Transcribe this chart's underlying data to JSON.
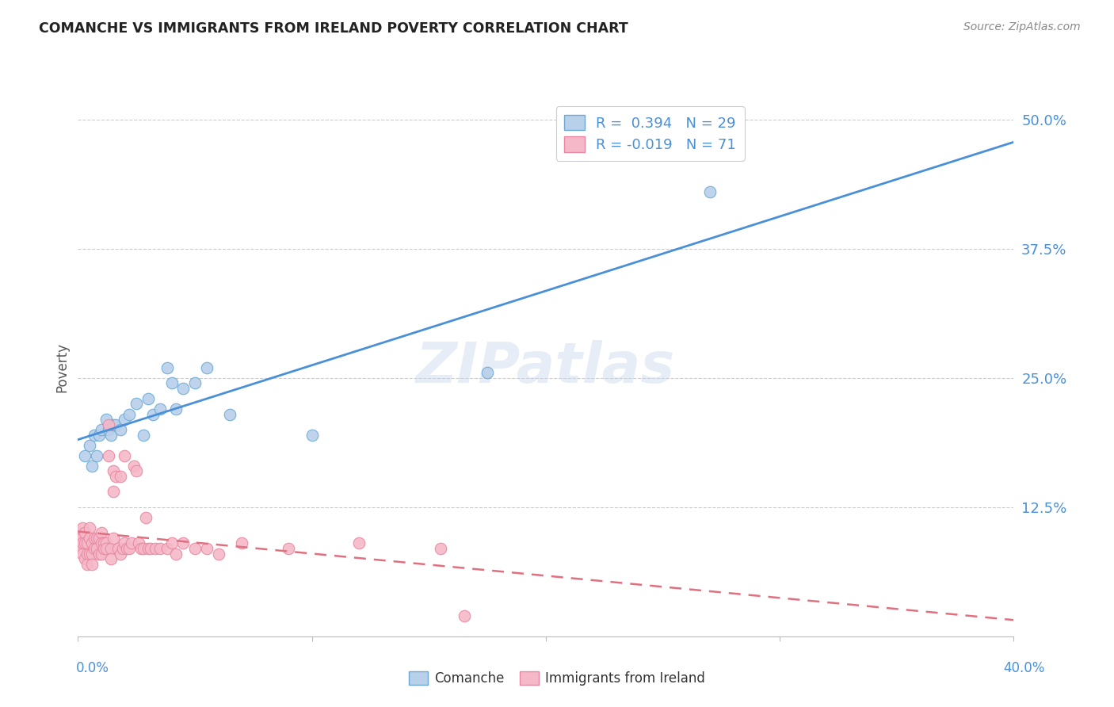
{
  "title": "COMANCHE VS IMMIGRANTS FROM IRELAND POVERTY CORRELATION CHART",
  "source": "Source: ZipAtlas.com",
  "ylabel": "Poverty",
  "ytick_values": [
    0.125,
    0.25,
    0.375,
    0.5
  ],
  "ytick_labels": [
    "12.5%",
    "25.0%",
    "37.5%",
    "50.0%"
  ],
  "xlim": [
    0.0,
    0.4
  ],
  "ylim": [
    0.0,
    0.52
  ],
  "legend_r1": "R =  0.394   N = 29",
  "legend_r2": "R = -0.019   N = 71",
  "comanche_fill": "#b8d0ea",
  "comanche_edge": "#6aaad4",
  "ireland_fill": "#f5b8c8",
  "ireland_edge": "#e888a0",
  "trendline_blue": "#4a90d9",
  "trendline_pink": "#e07080",
  "grid_color": "#cccccc",
  "title_color": "#222222",
  "source_color": "#888888",
  "tick_color": "#4a90d9",
  "watermark": "ZIPatlas",
  "comanche_x": [
    0.003,
    0.005,
    0.006,
    0.007,
    0.008,
    0.009,
    0.01,
    0.012,
    0.013,
    0.014,
    0.015,
    0.016,
    0.018,
    0.02,
    0.022,
    0.025,
    0.028,
    0.03,
    0.032,
    0.035,
    0.038,
    0.04,
    0.042,
    0.045,
    0.05,
    0.055,
    0.065,
    0.1,
    0.175
  ],
  "comanche_y": [
    0.175,
    0.185,
    0.165,
    0.195,
    0.175,
    0.195,
    0.2,
    0.21,
    0.2,
    0.195,
    0.205,
    0.205,
    0.2,
    0.21,
    0.215,
    0.225,
    0.195,
    0.23,
    0.215,
    0.22,
    0.26,
    0.245,
    0.22,
    0.24,
    0.245,
    0.26,
    0.215,
    0.195,
    0.255
  ],
  "ireland_x": [
    0.0005,
    0.001,
    0.001,
    0.0015,
    0.0015,
    0.002,
    0.002,
    0.002,
    0.003,
    0.003,
    0.003,
    0.004,
    0.004,
    0.004,
    0.005,
    0.005,
    0.005,
    0.006,
    0.006,
    0.006,
    0.007,
    0.007,
    0.008,
    0.008,
    0.009,
    0.009,
    0.01,
    0.01,
    0.01,
    0.011,
    0.011,
    0.012,
    0.012,
    0.013,
    0.013,
    0.014,
    0.014,
    0.015,
    0.015,
    0.015,
    0.016,
    0.017,
    0.018,
    0.018,
    0.019,
    0.02,
    0.02,
    0.021,
    0.022,
    0.023,
    0.024,
    0.025,
    0.026,
    0.027,
    0.028,
    0.029,
    0.03,
    0.031,
    0.033,
    0.035,
    0.038,
    0.04,
    0.042,
    0.045,
    0.05,
    0.055,
    0.06,
    0.07,
    0.09,
    0.12,
    0.155
  ],
  "ireland_y": [
    0.1,
    0.095,
    0.085,
    0.095,
    0.085,
    0.105,
    0.09,
    0.08,
    0.1,
    0.09,
    0.075,
    0.09,
    0.08,
    0.07,
    0.105,
    0.095,
    0.08,
    0.09,
    0.08,
    0.07,
    0.095,
    0.085,
    0.095,
    0.085,
    0.095,
    0.08,
    0.1,
    0.09,
    0.08,
    0.09,
    0.085,
    0.09,
    0.085,
    0.175,
    0.205,
    0.085,
    0.075,
    0.16,
    0.14,
    0.095,
    0.155,
    0.085,
    0.155,
    0.08,
    0.085,
    0.175,
    0.09,
    0.085,
    0.085,
    0.09,
    0.165,
    0.16,
    0.09,
    0.085,
    0.085,
    0.115,
    0.085,
    0.085,
    0.085,
    0.085,
    0.085,
    0.09,
    0.08,
    0.09,
    0.085,
    0.085,
    0.08,
    0.09,
    0.085,
    0.09,
    0.085
  ],
  "comanche_outlier_x": [
    0.27
  ],
  "comanche_outlier_y": [
    0.43
  ],
  "ireland_outlier_x": [
    0.165
  ],
  "ireland_outlier_y": [
    0.02
  ]
}
